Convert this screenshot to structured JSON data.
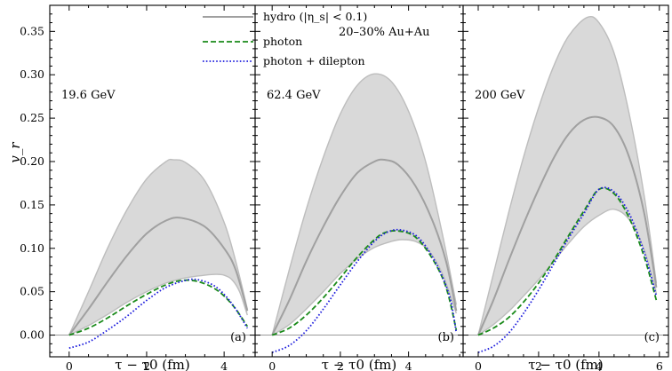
{
  "chart_data": {
    "type": "line",
    "ylabel": "v_r",
    "ylim": [
      -0.025,
      0.38
    ],
    "yticks": [
      "0.00",
      "0.05",
      "0.10",
      "0.15",
      "0.20",
      "0.25",
      "0.30",
      "0.35"
    ],
    "legend": {
      "position": "top-left of middle panel",
      "entries": [
        {
          "key": "hydro",
          "label": "hydro (|η_s| < 0.1)",
          "color": "#a9a9a9",
          "style": "solid band"
        },
        {
          "key": "photon",
          "label": "photon",
          "color": "#1a8a1a",
          "style": "dashed"
        },
        {
          "key": "photon_dilepton",
          "label": "photon + dilepton",
          "color": "#1f1fdd",
          "style": "dotted"
        }
      ]
    },
    "annotation": "20–30% Au+Au",
    "colors": {
      "band": "#d9d9d9",
      "band_edge": "#bdbdbd",
      "hydro_line": "#a0a0a0",
      "photon": "#1a8a1a",
      "photon_dilepton": "#1f1fdd",
      "zero_line": "#9a9a9a"
    },
    "panels": [
      {
        "energy": "19.6 GeV",
        "tag": "(a)",
        "xlabel": "τ − τ0 (fm)",
        "xlim": [
          -0.5,
          4.8
        ],
        "xticks": [
          "0",
          "2",
          "4"
        ],
        "band_lower": {
          "x": [
            0,
            0.5,
            1.0,
            1.5,
            2.0,
            2.5,
            3.0,
            3.5,
            3.8,
            4.0,
            4.2,
            4.4,
            4.6
          ],
          "y": [
            0.0,
            0.011,
            0.024,
            0.038,
            0.05,
            0.06,
            0.066,
            0.069,
            0.07,
            0.069,
            0.064,
            0.05,
            0.023
          ]
        },
        "band_upper": {
          "x": [
            0,
            0.5,
            1.0,
            1.5,
            2.0,
            2.5,
            2.7,
            3.0,
            3.5,
            4.0,
            4.3,
            4.6
          ],
          "y": [
            0.0,
            0.05,
            0.101,
            0.145,
            0.18,
            0.2,
            0.202,
            0.199,
            0.178,
            0.13,
            0.085,
            0.03
          ]
        },
        "hydro_mean": {
          "x": [
            0,
            0.5,
            1.0,
            1.5,
            2.0,
            2.5,
            2.9,
            3.5,
            4.0,
            4.3,
            4.6
          ],
          "y": [
            0.0,
            0.03,
            0.062,
            0.092,
            0.117,
            0.132,
            0.135,
            0.125,
            0.1,
            0.075,
            0.028
          ]
        },
        "photon": {
          "x": [
            0,
            0.5,
            1.0,
            1.5,
            2.0,
            2.5,
            2.9,
            3.3,
            3.7,
            4.0,
            4.3,
            4.6
          ],
          "y": [
            0.0,
            0.008,
            0.02,
            0.034,
            0.047,
            0.058,
            0.063,
            0.062,
            0.055,
            0.045,
            0.03,
            0.01
          ]
        },
        "photon_dilepton": {
          "x": [
            0,
            0.5,
            1.0,
            1.5,
            2.0,
            2.5,
            3.0,
            3.3,
            3.7,
            4.0,
            4.3,
            4.6
          ],
          "y": [
            -0.015,
            -0.008,
            0.006,
            0.022,
            0.04,
            0.055,
            0.063,
            0.064,
            0.058,
            0.047,
            0.03,
            0.008
          ]
        }
      },
      {
        "energy": "62.4 GeV",
        "tag": "(b)",
        "xlabel": "τ − τ0 (fm)",
        "xlim": [
          -0.5,
          5.6
        ],
        "xticks": [
          "0",
          "2",
          "4"
        ],
        "band_lower": {
          "x": [
            0,
            0.5,
            1.0,
            1.5,
            2.0,
            2.5,
            3.0,
            3.5,
            3.8,
            4.2,
            4.6,
            5.0,
            5.4
          ],
          "y": [
            0.0,
            0.012,
            0.03,
            0.05,
            0.071,
            0.088,
            0.101,
            0.108,
            0.11,
            0.108,
            0.097,
            0.07,
            0.025
          ]
        },
        "band_upper": {
          "x": [
            0,
            0.5,
            1.0,
            1.5,
            2.0,
            2.5,
            3.0,
            3.5,
            4.0,
            4.5,
            5.0,
            5.4
          ],
          "y": [
            0.0,
            0.075,
            0.145,
            0.205,
            0.255,
            0.288,
            0.301,
            0.292,
            0.258,
            0.2,
            0.115,
            0.035
          ]
        },
        "hydro_mean": {
          "x": [
            0,
            0.5,
            1.0,
            1.5,
            2.0,
            2.5,
            3.0,
            3.3,
            3.7,
            4.2,
            4.7,
            5.1,
            5.4
          ],
          "y": [
            0.0,
            0.04,
            0.085,
            0.125,
            0.16,
            0.187,
            0.2,
            0.202,
            0.196,
            0.172,
            0.132,
            0.085,
            0.028
          ]
        },
        "photon": {
          "x": [
            0,
            0.5,
            1.0,
            1.5,
            2.0,
            2.5,
            3.0,
            3.3,
            3.7,
            4.2,
            4.7,
            5.1,
            5.4
          ],
          "y": [
            0.0,
            0.008,
            0.023,
            0.043,
            0.066,
            0.09,
            0.11,
            0.118,
            0.12,
            0.113,
            0.088,
            0.055,
            0.006
          ]
        },
        "photon_dilepton": {
          "x": [
            0,
            0.5,
            1.0,
            1.5,
            2.0,
            2.5,
            3.0,
            3.4,
            3.8,
            4.3,
            4.8,
            5.2,
            5.4
          ],
          "y": [
            -0.02,
            -0.012,
            0.005,
            0.03,
            0.058,
            0.085,
            0.108,
            0.119,
            0.121,
            0.112,
            0.083,
            0.045,
            0.003
          ]
        }
      },
      {
        "energy": "200 GeV",
        "tag": "(c)",
        "xlabel": "τ − τ0 (fm)",
        "xlim": [
          -0.5,
          6.3
        ],
        "xticks": [
          "0",
          "2",
          "4",
          "6"
        ],
        "band_lower": {
          "x": [
            0,
            0.5,
            1.0,
            1.5,
            2.0,
            2.5,
            3.0,
            3.5,
            4.0,
            4.5,
            5.0,
            5.5,
            5.9
          ],
          "y": [
            0.0,
            0.012,
            0.027,
            0.045,
            0.064,
            0.085,
            0.106,
            0.125,
            0.138,
            0.145,
            0.133,
            0.098,
            0.048
          ]
        },
        "band_upper": {
          "x": [
            0,
            0.5,
            1.0,
            1.5,
            2.0,
            2.5,
            3.0,
            3.6,
            4.0,
            4.5,
            5.0,
            5.5,
            5.9
          ],
          "y": [
            0.0,
            0.07,
            0.14,
            0.205,
            0.262,
            0.31,
            0.345,
            0.366,
            0.36,
            0.325,
            0.255,
            0.16,
            0.06
          ]
        },
        "hydro_mean": {
          "x": [
            0,
            0.5,
            1.0,
            1.5,
            2.0,
            2.5,
            3.0,
            3.5,
            4.0,
            4.5,
            5.0,
            5.5,
            5.9
          ],
          "y": [
            0.0,
            0.04,
            0.085,
            0.128,
            0.168,
            0.204,
            0.232,
            0.248,
            0.251,
            0.24,
            0.205,
            0.14,
            0.055
          ]
        },
        "photon": {
          "x": [
            0,
            0.5,
            1.0,
            1.5,
            2.0,
            2.5,
            3.0,
            3.5,
            4.0,
            4.5,
            5.0,
            5.5,
            5.9
          ],
          "y": [
            0.0,
            0.008,
            0.02,
            0.038,
            0.06,
            0.086,
            0.115,
            0.143,
            0.168,
            0.163,
            0.135,
            0.09,
            0.04
          ]
        },
        "photon_dilepton": {
          "x": [
            0,
            0.5,
            1.0,
            1.5,
            2.0,
            2.5,
            3.0,
            3.5,
            4.0,
            4.5,
            5.0,
            5.5,
            5.9
          ],
          "y": [
            -0.02,
            -0.013,
            0.002,
            0.025,
            0.052,
            0.082,
            0.112,
            0.14,
            0.168,
            0.165,
            0.14,
            0.095,
            0.045
          ]
        }
      }
    ]
  }
}
